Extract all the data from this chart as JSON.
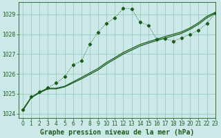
{
  "title": "Graphe pression niveau de la mer (hPa)",
  "bg_color": "#cce8e8",
  "grid_color": "#99ccbb",
  "line_color": "#1a5c1a",
  "xlim": [
    -0.5,
    23
  ],
  "ylim": [
    1023.8,
    1029.6
  ],
  "yticks": [
    1024,
    1025,
    1026,
    1027,
    1028,
    1029
  ],
  "xticks": [
    0,
    1,
    2,
    3,
    4,
    5,
    6,
    7,
    8,
    9,
    10,
    11,
    12,
    13,
    14,
    15,
    16,
    17,
    18,
    19,
    20,
    21,
    22,
    23
  ],
  "series_dotted_x": [
    0,
    1,
    2,
    3,
    4,
    5,
    6,
    7,
    8,
    9,
    10,
    11,
    12,
    13,
    14,
    15,
    16,
    17,
    18,
    19,
    20,
    21,
    22,
    23
  ],
  "series_dotted_y": [
    1024.2,
    1024.85,
    1025.1,
    1025.3,
    1025.55,
    1025.85,
    1026.45,
    1026.65,
    1027.5,
    1028.1,
    1028.55,
    1028.82,
    1029.3,
    1029.28,
    1028.6,
    1028.45,
    1027.75,
    1027.78,
    1027.65,
    1027.82,
    1028.0,
    1028.2,
    1028.55,
    1029.05
  ],
  "series_line1_x": [
    0,
    1,
    2,
    3,
    4,
    5,
    6,
    7,
    8,
    9,
    10,
    11,
    12,
    13,
    14,
    15,
    16,
    17,
    18,
    19,
    20,
    21,
    22,
    23
  ],
  "series_line1_y": [
    1024.15,
    1024.8,
    1025.05,
    1025.25,
    1025.25,
    1025.35,
    1025.55,
    1025.75,
    1025.98,
    1026.2,
    1026.5,
    1026.75,
    1027.0,
    1027.2,
    1027.4,
    1027.55,
    1027.68,
    1027.8,
    1027.92,
    1028.05,
    1028.25,
    1028.5,
    1028.82,
    1029.05
  ],
  "series_line2_x": [
    0,
    1,
    2,
    3,
    4,
    5,
    6,
    7,
    8,
    9,
    10,
    11,
    12,
    13,
    14,
    15,
    16,
    17,
    18,
    19,
    20,
    21,
    22,
    23
  ],
  "series_line2_y": [
    1024.2,
    1024.82,
    1025.08,
    1025.28,
    1025.28,
    1025.38,
    1025.6,
    1025.82,
    1026.05,
    1026.28,
    1026.58,
    1026.82,
    1027.08,
    1027.28,
    1027.48,
    1027.62,
    1027.75,
    1027.88,
    1028.0,
    1028.12,
    1028.32,
    1028.58,
    1028.9,
    1029.1
  ],
  "title_color": "#1a5c1a",
  "title_fontsize": 7,
  "tick_fontsize": 5.5,
  "marker": "D",
  "markersize": 2.2,
  "lw_dotted": 0.7,
  "lw_solid": 0.9
}
